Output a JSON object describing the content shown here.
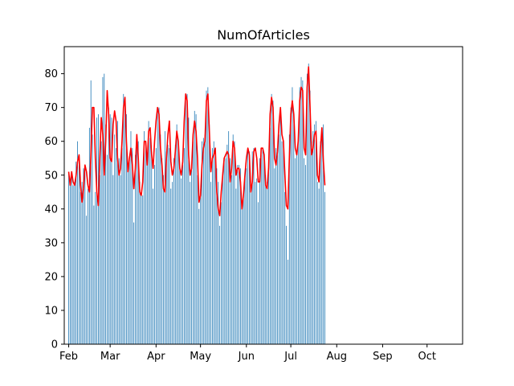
{
  "chart_data": {
    "type": "bar",
    "title": "NumOfArticles",
    "xlabel": "",
    "ylabel": "",
    "ylim": [
      0,
      88
    ],
    "xlim": [
      "2019-01-29",
      "2019-10-25"
    ],
    "x_ticks": [
      {
        "date": "2019-02-01",
        "label": "Feb"
      },
      {
        "date": "2019-03-01",
        "label": "Mar"
      },
      {
        "date": "2019-04-01",
        "label": "Apr"
      },
      {
        "date": "2019-05-01",
        "label": "May"
      },
      {
        "date": "2019-06-01",
        "label": "Jun"
      },
      {
        "date": "2019-07-01",
        "label": "Jul"
      },
      {
        "date": "2019-08-01",
        "label": "Aug"
      },
      {
        "date": "2019-09-01",
        "label": "Sep"
      },
      {
        "date": "2019-10-01",
        "label": "Oct"
      }
    ],
    "y_ticks": [
      0,
      10,
      20,
      30,
      40,
      50,
      60,
      70,
      80
    ],
    "start_date": "2019-02-01",
    "series": [
      {
        "kind": "bar",
        "color": "#1f77b4",
        "values": [
          51,
          47,
          50,
          47,
          48,
          54,
          60,
          55,
          45,
          48,
          52,
          51,
          38,
          46,
          64,
          78,
          62,
          41,
          45,
          67,
          68,
          50,
          60,
          79,
          80,
          65,
          56,
          70,
          68,
          67,
          50,
          62,
          58,
          66,
          55,
          50,
          58,
          74,
          73,
          68,
          52,
          55,
          63,
          58,
          36,
          56,
          62,
          60,
          48,
          44,
          44,
          63,
          59,
          55,
          66,
          61,
          57,
          46,
          53,
          58,
          69,
          70,
          62,
          55,
          50,
          63,
          57,
          59,
          58,
          46,
          48,
          55,
          59,
          65,
          60,
          52,
          49,
          53,
          58,
          72,
          74,
          67,
          48,
          52,
          60,
          69,
          68,
          50,
          40,
          46,
          60,
          61,
          62,
          75,
          76,
          65,
          48,
          58,
          60,
          58,
          52,
          48,
          35,
          42,
          51,
          55,
          55,
          59,
          63,
          55,
          50,
          62,
          60,
          46,
          53,
          53,
          52,
          40,
          43,
          49,
          52,
          58,
          57,
          46,
          57,
          58,
          48,
          49,
          42,
          55,
          56,
          58,
          56,
          50,
          48,
          53,
          64,
          74,
          72,
          52,
          58,
          56,
          62,
          70,
          60,
          60,
          45,
          35,
          25,
          62,
          70,
          76,
          68,
          55,
          56,
          60,
          76,
          79,
          78,
          55,
          53,
          80,
          83,
          75,
          60,
          63,
          65,
          66,
          48,
          46,
          60,
          64,
          65,
          45
        ],
        "note": ""
      },
      {
        "kind": "line",
        "color": "#ff0000",
        "values": [
          51,
          47,
          51,
          48,
          47,
          50,
          54,
          56,
          47,
          42,
          46,
          53,
          51,
          47,
          45,
          56,
          70,
          70,
          55,
          45,
          41,
          55,
          67,
          62,
          50,
          60,
          75,
          68,
          55,
          54,
          65,
          69,
          66,
          55,
          50,
          52,
          60,
          70,
          73,
          60,
          51,
          55,
          58,
          53,
          46,
          52,
          62,
          55,
          45,
          44,
          48,
          60,
          60,
          53,
          63,
          64,
          56,
          52,
          60,
          66,
          70,
          68,
          58,
          53,
          46,
          45,
          55,
          62,
          66,
          54,
          50,
          52,
          57,
          63,
          60,
          52,
          50,
          54,
          66,
          74,
          72,
          56,
          50,
          52,
          62,
          66,
          63,
          55,
          42,
          44,
          53,
          58,
          60,
          72,
          74,
          63,
          51,
          55,
          56,
          58,
          45,
          40,
          38,
          45,
          50,
          55,
          56,
          57,
          56,
          48,
          52,
          60,
          58,
          50,
          52,
          52,
          48,
          40,
          44,
          50,
          55,
          58,
          56,
          45,
          48,
          57,
          58,
          55,
          48,
          48,
          58,
          58,
          56,
          47,
          46,
          52,
          68,
          73,
          70,
          55,
          53,
          57,
          65,
          70,
          62,
          60,
          50,
          41,
          40,
          55,
          68,
          72,
          68,
          58,
          56,
          60,
          72,
          76,
          75,
          58,
          56,
          76,
          82,
          70,
          56,
          58,
          62,
          63,
          50,
          48,
          58,
          64,
          54,
          47
        ]
      }
    ]
  }
}
